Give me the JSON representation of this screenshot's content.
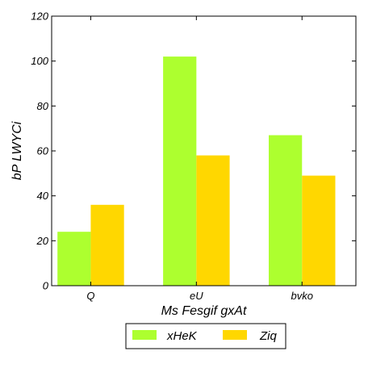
{
  "chart_data": {
    "type": "bar",
    "categories": [
      "Q",
      "eU",
      "bvko"
    ],
    "series": [
      {
        "name": "xHeK",
        "values": [
          24,
          102,
          67
        ],
        "color": "#adff2f"
      },
      {
        "name": "Ziq",
        "values": [
          36,
          58,
          49
        ],
        "color": "#ffd700"
      }
    ],
    "xlabel": "Ms Fesgif gxAt",
    "ylabel": "bP LWYCi",
    "ylim": [
      0,
      120
    ],
    "yticks": [
      0,
      20,
      40,
      60,
      80,
      100,
      120
    ],
    "grid": false,
    "legend_position": "bottom-center"
  }
}
